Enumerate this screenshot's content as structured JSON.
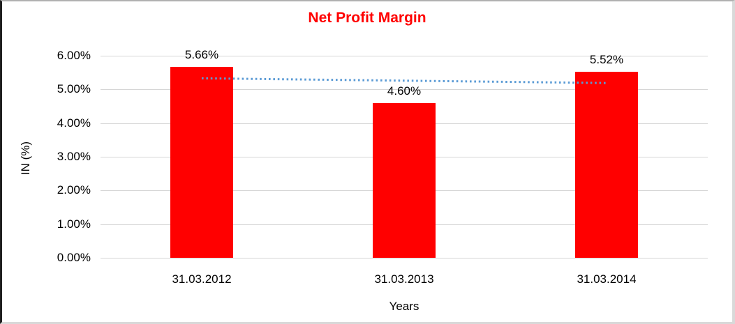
{
  "chart_data": {
    "type": "bar",
    "title": "Net Profit Margin",
    "title_color": "#FF0000",
    "xlabel": "Years",
    "ylabel": "IN (%)",
    "categories": [
      "31.03.2012",
      "31.03.2013",
      "31.03.2014"
    ],
    "values": [
      5.66,
      4.6,
      5.52
    ],
    "data_labels": [
      "5.66%",
      "4.60%",
      "5.52%"
    ],
    "bar_color": "#FF0000",
    "ylim": [
      0,
      6
    ],
    "ytick_labels": [
      "0.00%",
      "1.00%",
      "2.00%",
      "3.00%",
      "4.00%",
      "5.00%",
      "6.00%"
    ],
    "grid": true,
    "gridline_color": "#d6d6d6",
    "legend": "none",
    "trendline": {
      "type": "linear",
      "style": "dotted",
      "color": "#5B9BD5",
      "start_value": 5.33,
      "end_value": 5.19
    }
  }
}
